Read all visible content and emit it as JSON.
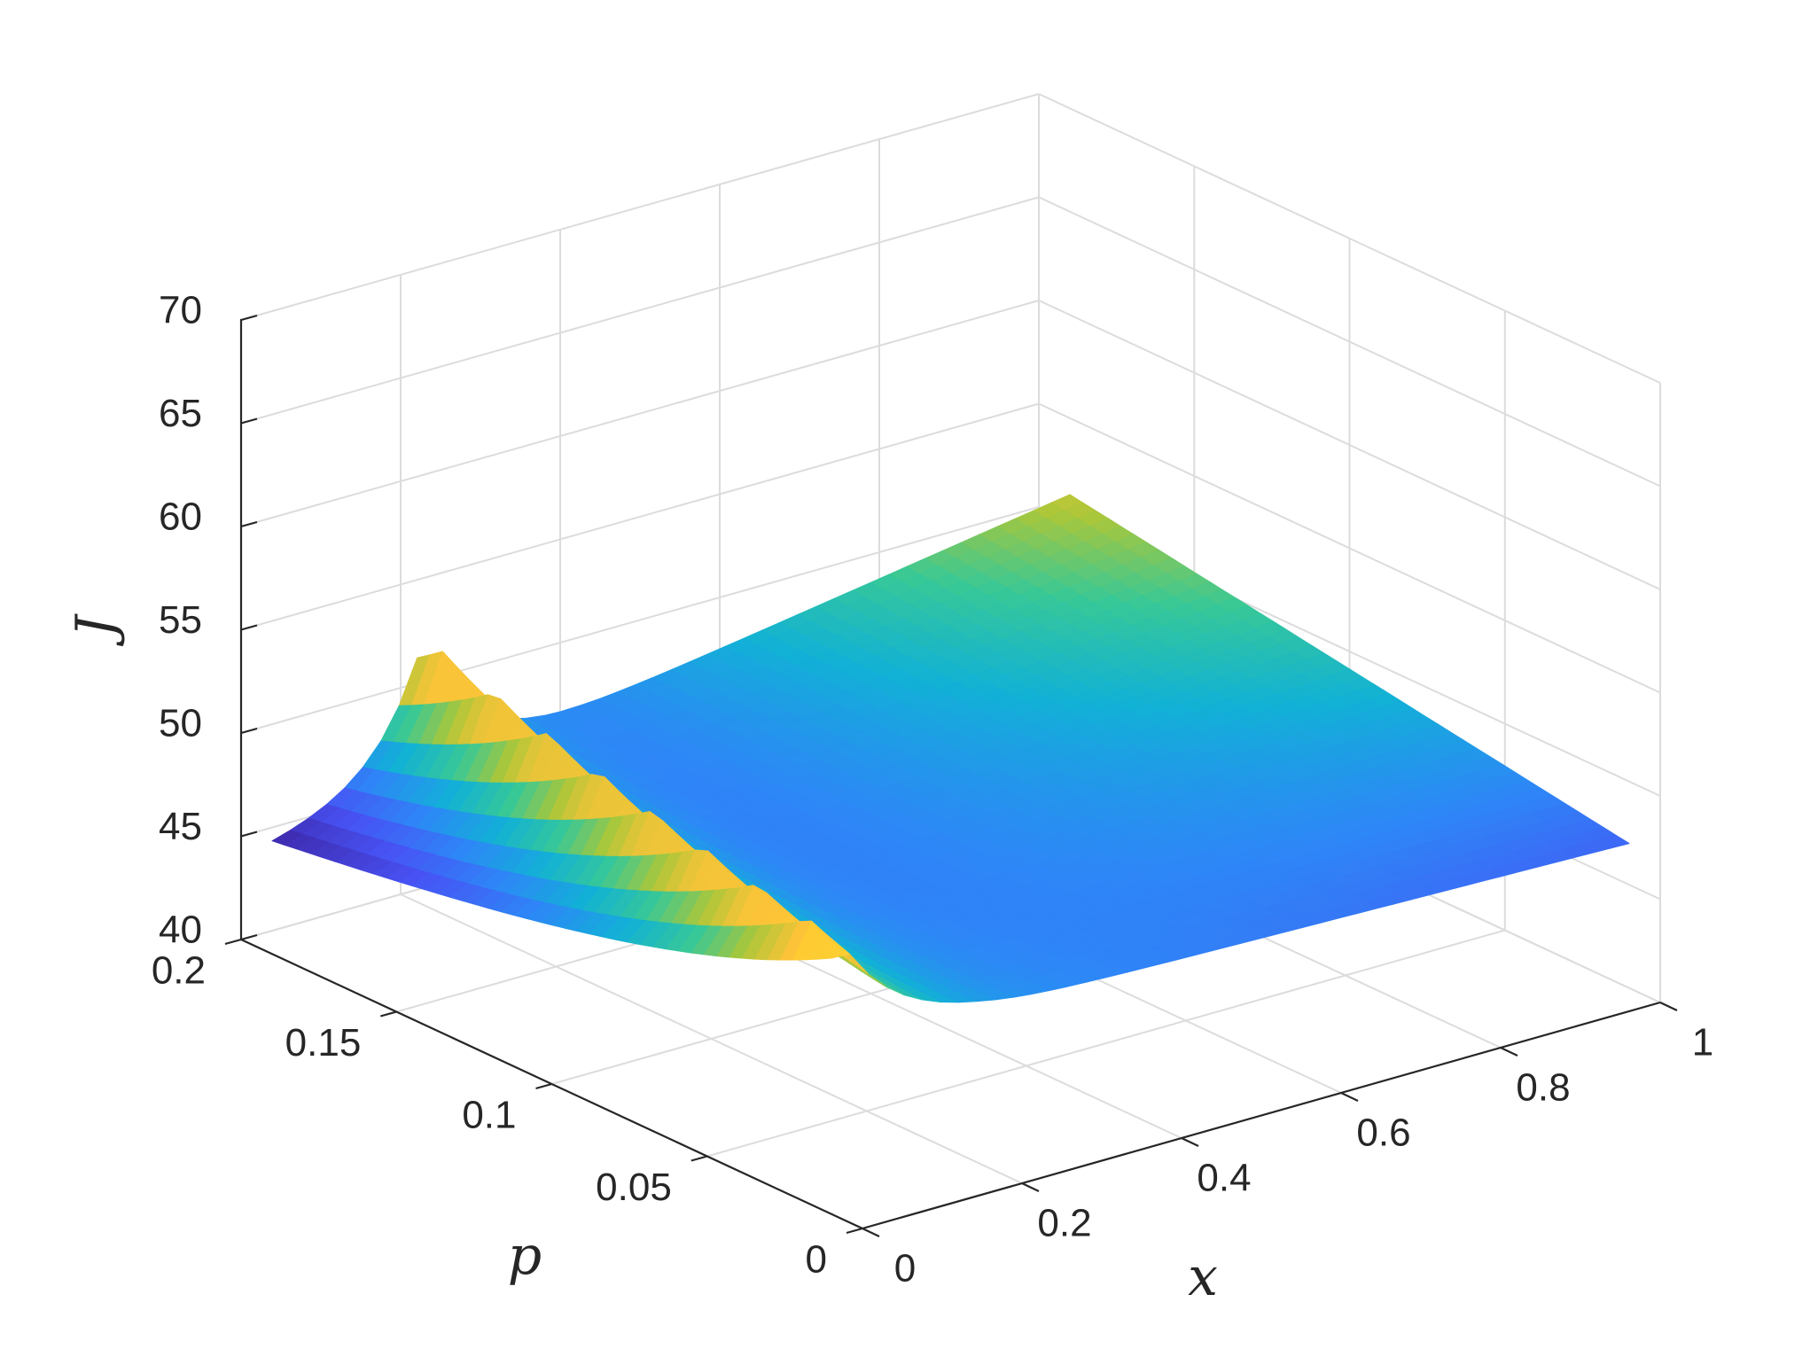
{
  "chart_data": {
    "type": "surface",
    "title": "",
    "xlabel": "x",
    "ylabel": "p",
    "zlabel": "J",
    "xlim": [
      0,
      1
    ],
    "ylim": [
      0,
      0.2
    ],
    "zlim": [
      40,
      70
    ],
    "x_ticks": [
      0,
      0.2,
      0.4,
      0.6,
      0.8,
      1
    ],
    "x_tick_labels": [
      "0",
      "0.2",
      "0.4",
      "0.6",
      "0.8",
      "1"
    ],
    "y_ticks": [
      0,
      0.05,
      0.1,
      0.15,
      0.2
    ],
    "y_tick_labels": [
      "0",
      "0.05",
      "0.1",
      "0.15",
      "0.2"
    ],
    "z_ticks": [
      40,
      45,
      50,
      55,
      60,
      65,
      70
    ],
    "z_tick_labels": [
      "40",
      "45",
      "50",
      "55",
      "60",
      "65",
      "70"
    ],
    "grid": true,
    "box": false,
    "colormap": "parula",
    "surface_extent": {
      "x": [
        0,
        1
      ],
      "p": [
        0.01,
        0.19
      ]
    },
    "surface_corners": {
      "x0_pmax": 45.2,
      "x0_pmin": 48.0,
      "x1_pmax": 51.3,
      "x1_pmin": 47.0
    },
    "ridge": {
      "along": "x=p",
      "peak": {
        "x": 0.19,
        "p": 0.19,
        "J": 53.3
      }
    }
  }
}
